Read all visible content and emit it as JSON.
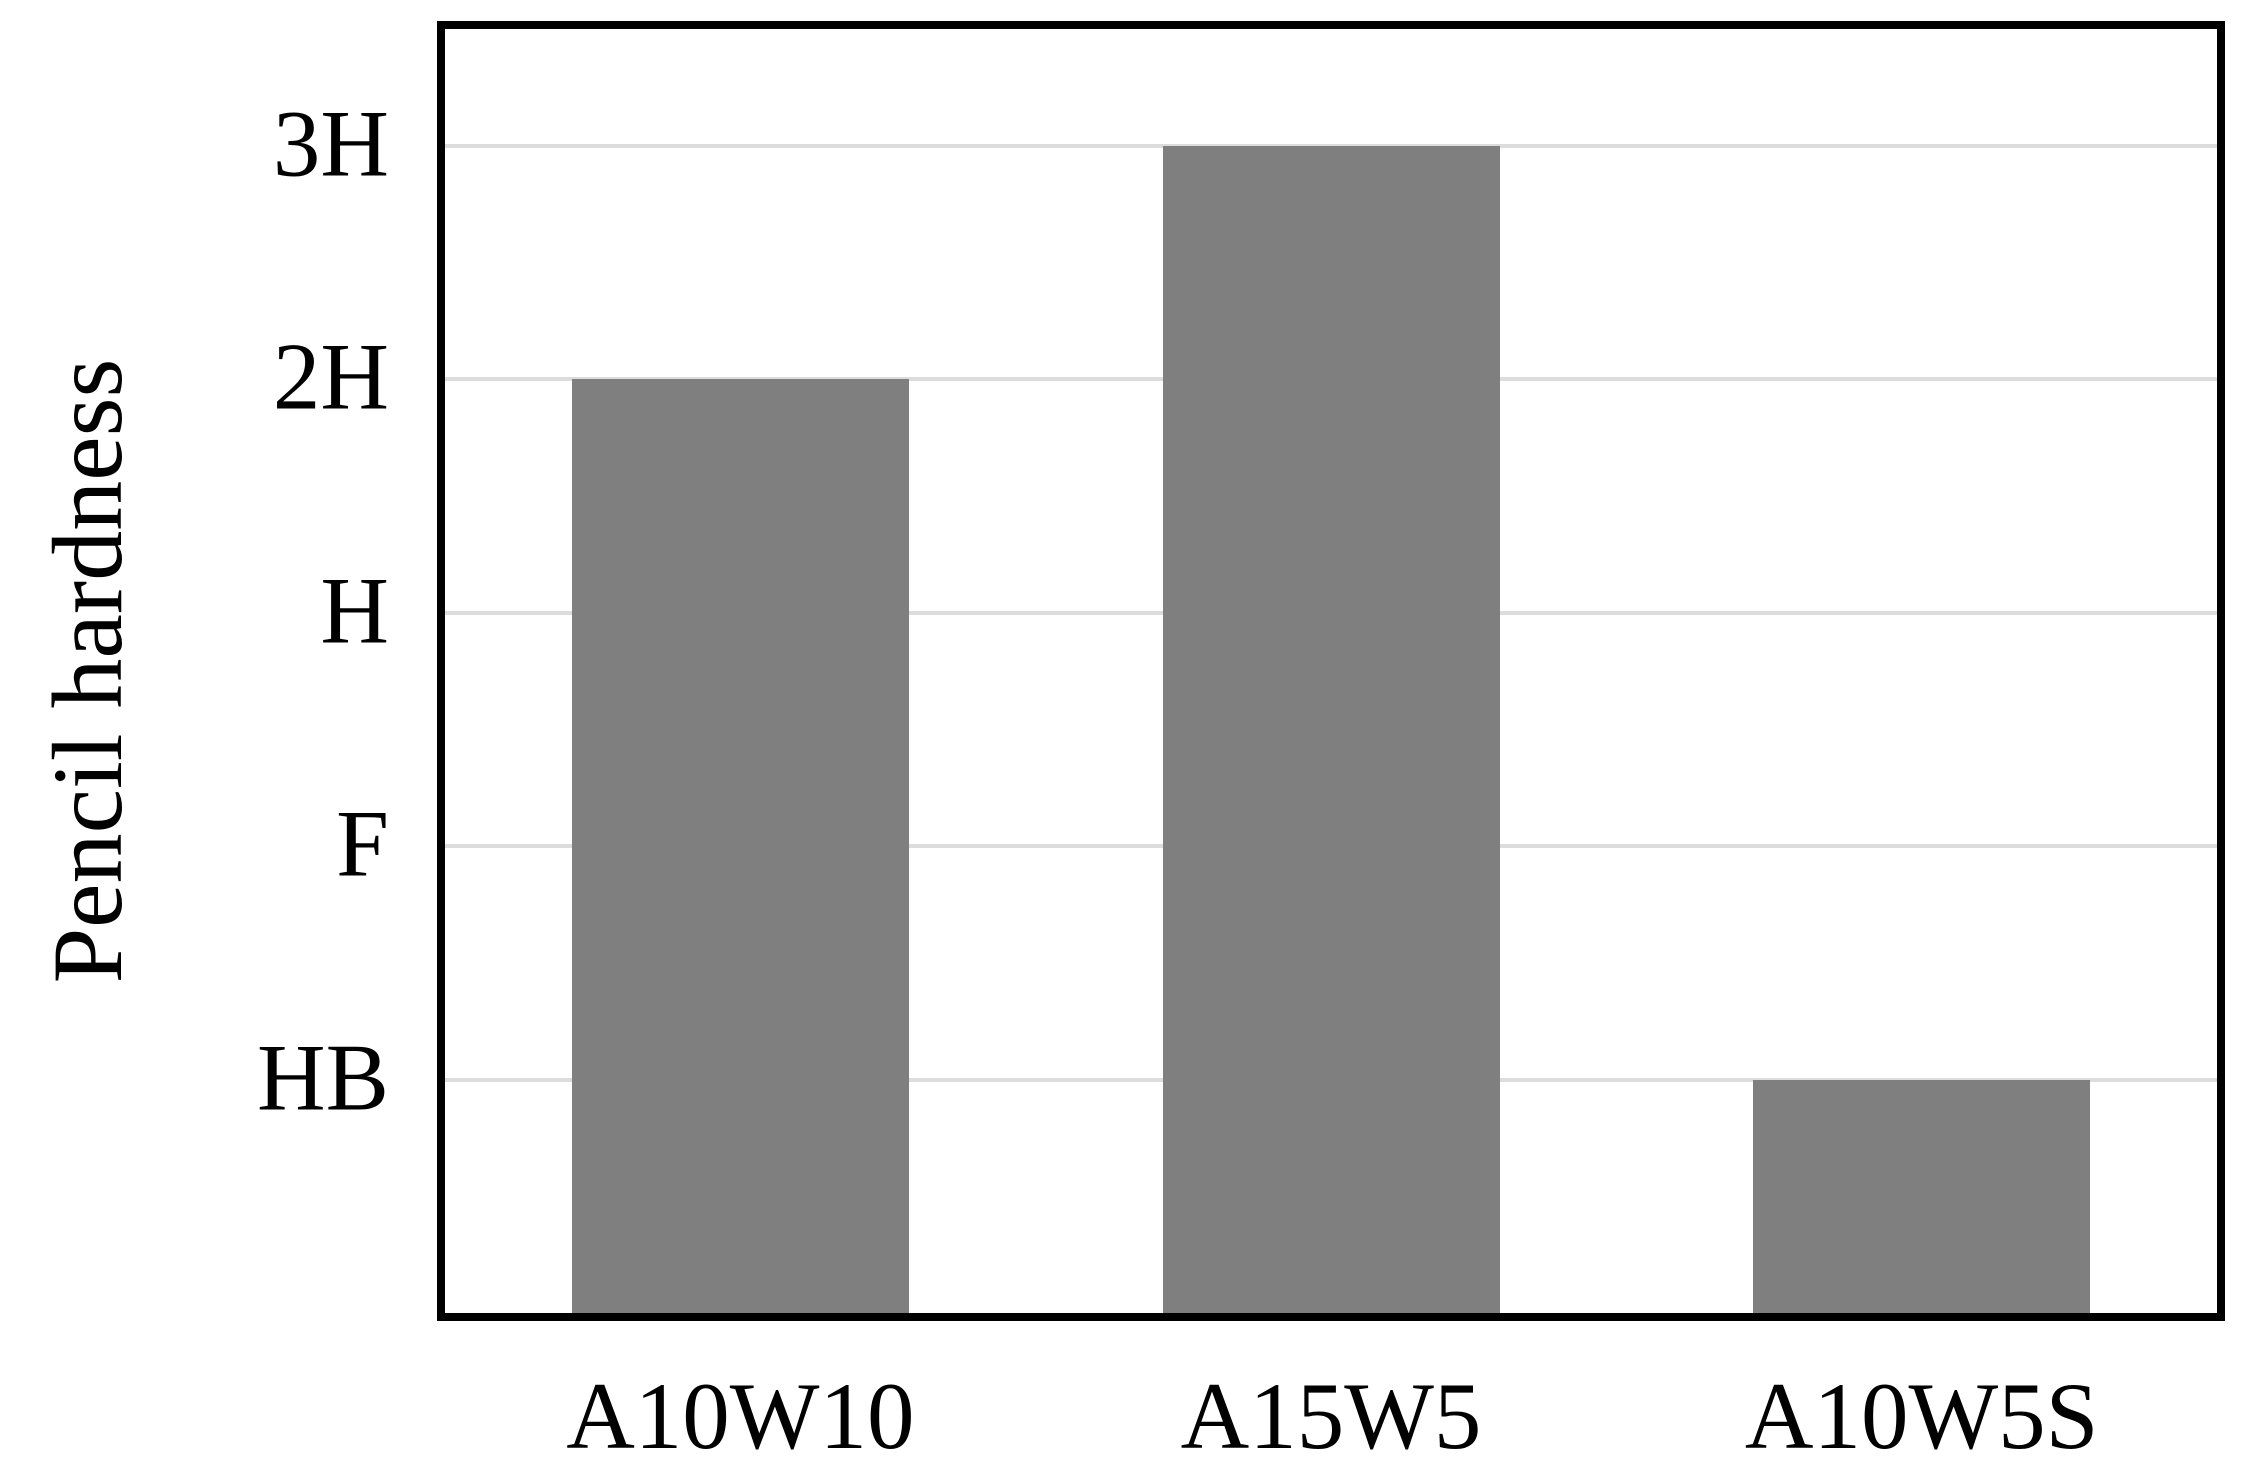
{
  "figure": {
    "background_color": "#ffffff",
    "text_color": "#000000"
  },
  "chart_data": {
    "type": "bar",
    "title": "",
    "categories": [
      "A10W10",
      "A15W5",
      "A10W5S"
    ],
    "series": [
      {
        "name": "Pencil hardness",
        "values": [
          4,
          5,
          1
        ],
        "values_as_grade": [
          "2H",
          "3H",
          "HB"
        ]
      }
    ],
    "xlabel": "",
    "ylabel": "Pencil hardness",
    "yticks": [
      {
        "label": "HB",
        "value": 1
      },
      {
        "label": "F",
        "value": 2
      },
      {
        "label": "H",
        "value": 3
      },
      {
        "label": "2H",
        "value": 4
      },
      {
        "label": "3H",
        "value": 5
      }
    ],
    "ylim": [
      0,
      5.5
    ],
    "grid": "horizontal",
    "legend_position": "none",
    "bar_color": "#7f7f7f",
    "gridline_color": "#dcdcdc",
    "axis_border_color": "#000000"
  }
}
